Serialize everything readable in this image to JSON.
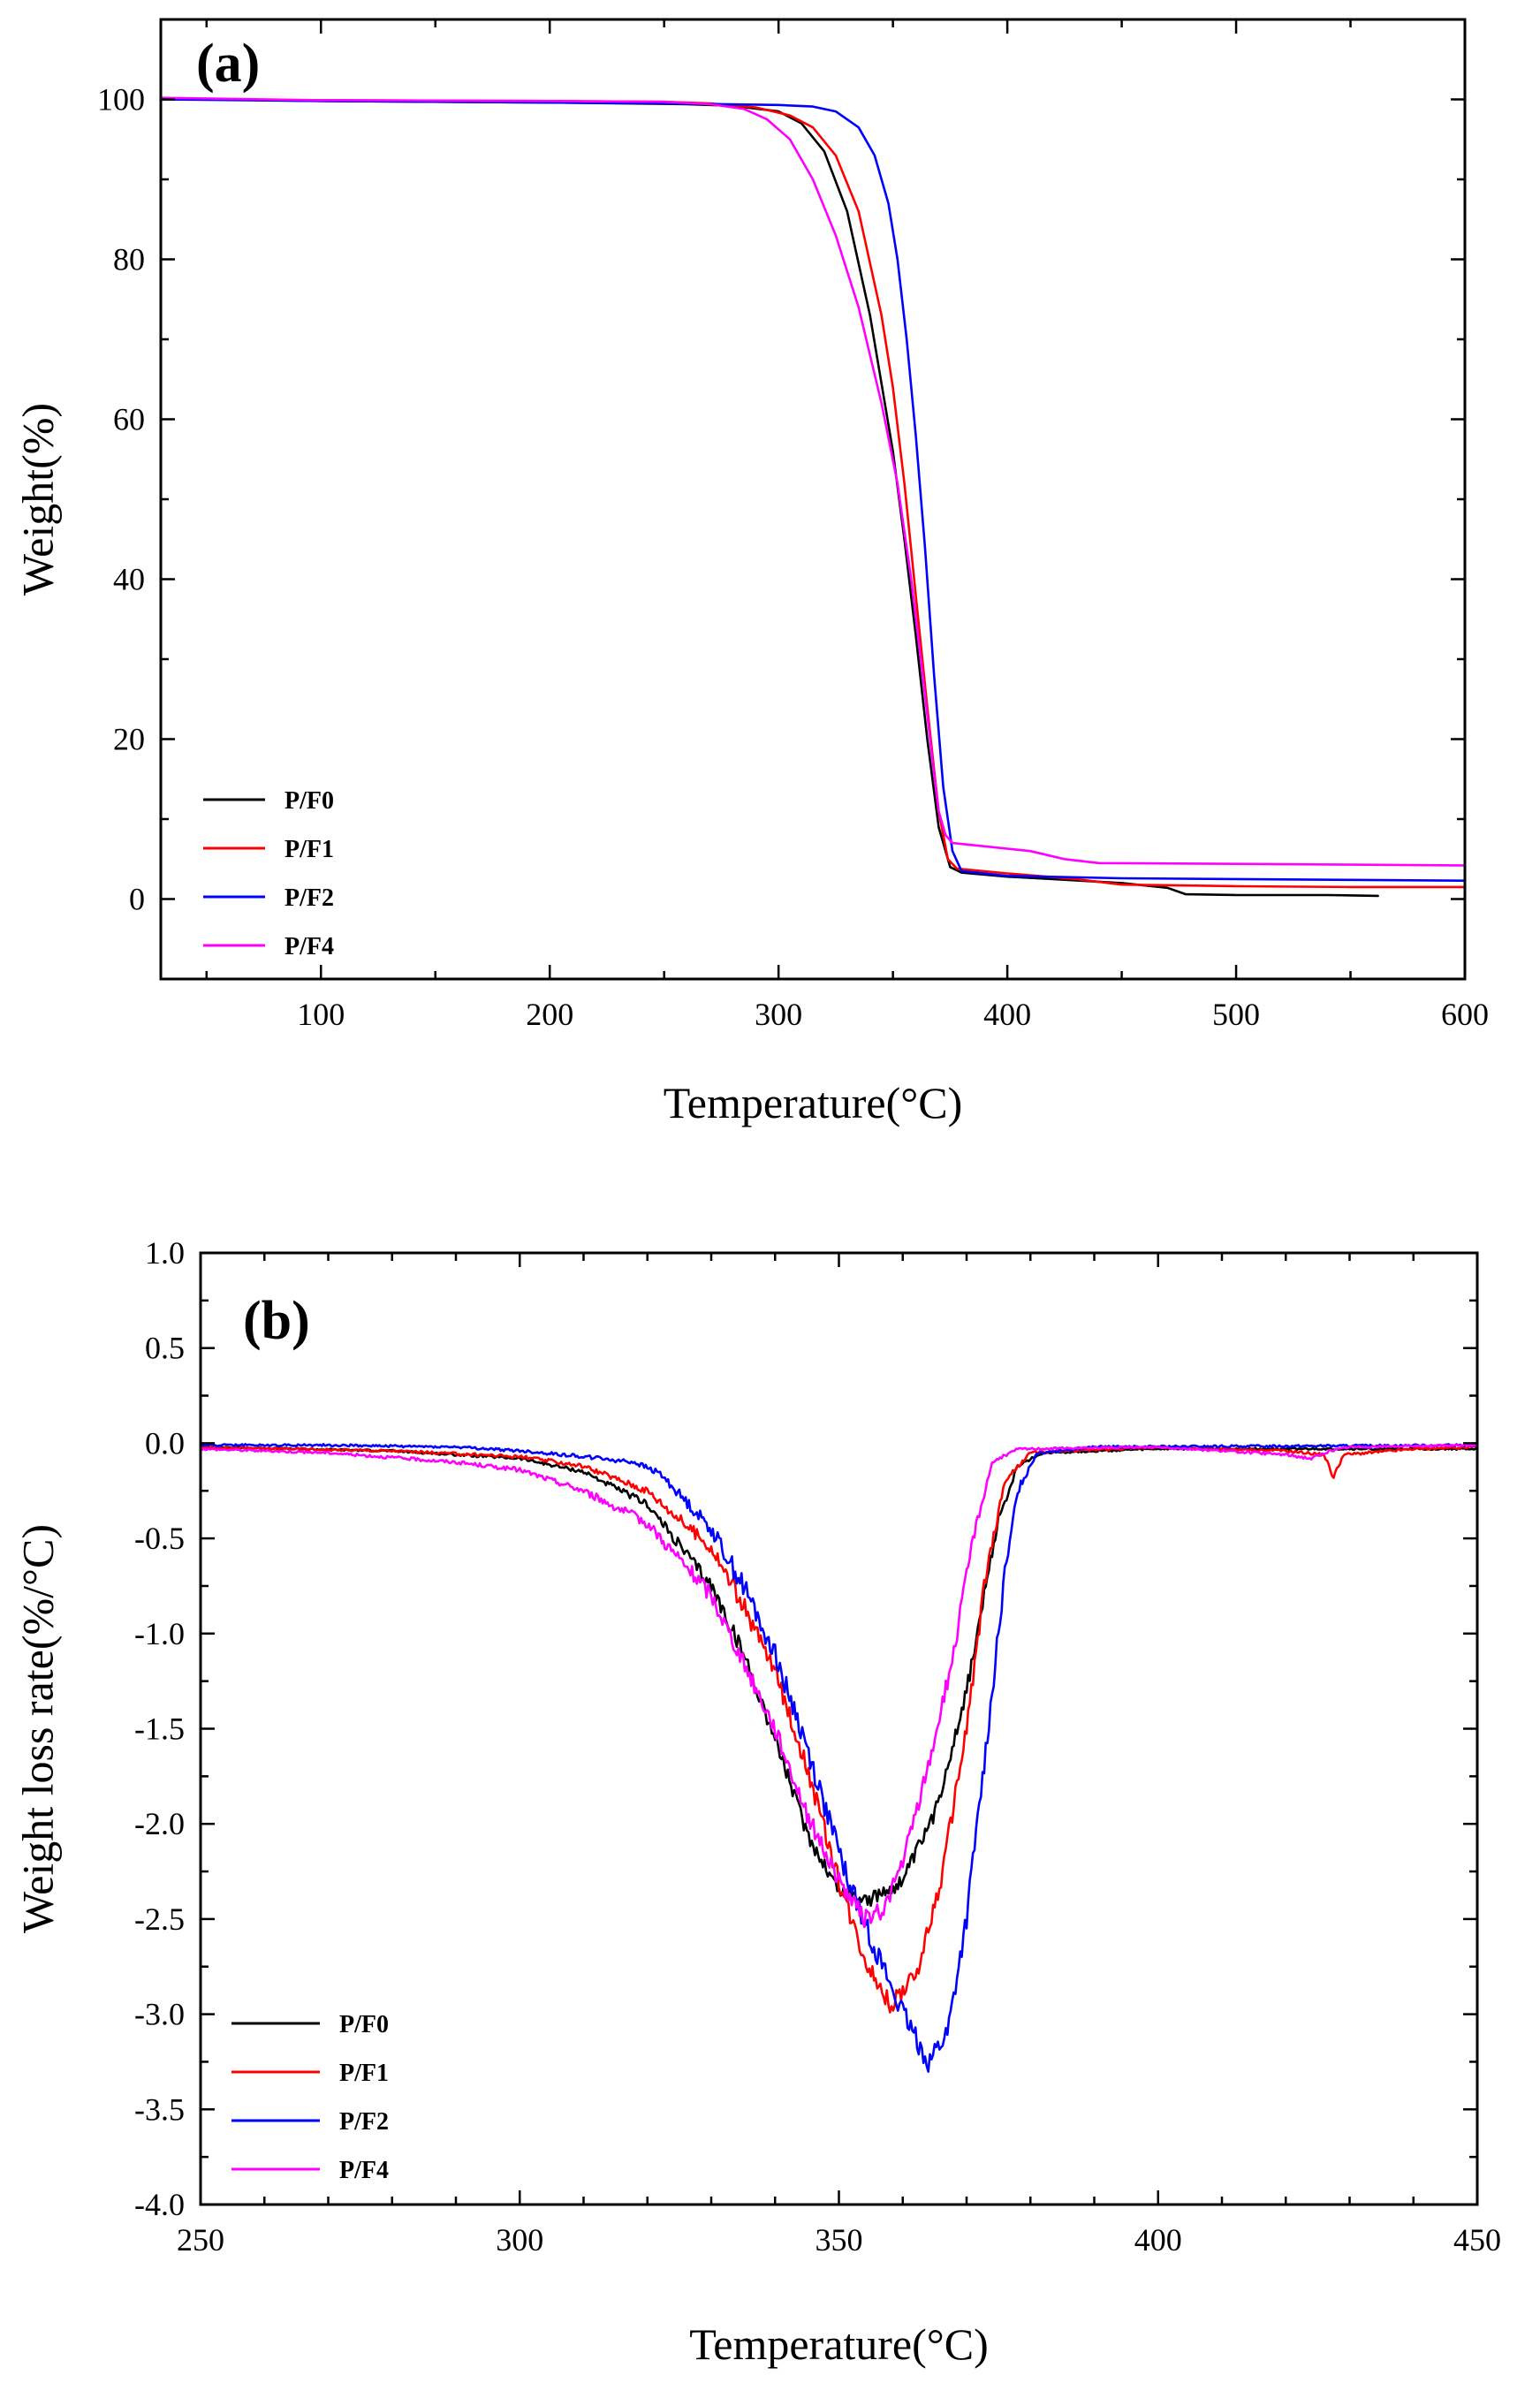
{
  "chart_data": [
    {
      "type": "line",
      "panel_label": "(a)",
      "title": "",
      "xlabel": "Temperature(°C)",
      "ylabel": "Weight(%)",
      "xlim": [
        30,
        600
      ],
      "ylim": [
        -10,
        110
      ],
      "xticks": [
        100,
        200,
        300,
        400,
        500,
        600
      ],
      "yticks": [
        0,
        20,
        40,
        60,
        80,
        100
      ],
      "x_minor_step": 50,
      "y_minor_step": 10,
      "grid": false,
      "legend_position": "bottom-left",
      "series": [
        {
          "name": "P/F0",
          "color": "#000000",
          "points": [
            [
              30,
              100.1
            ],
            [
              100,
              99.8
            ],
            [
              200,
              99.6
            ],
            [
              260,
              99.4
            ],
            [
              280,
              99.2
            ],
            [
              300,
              98.5
            ],
            [
              310,
              97
            ],
            [
              320,
              93.5
            ],
            [
              330,
              86
            ],
            [
              340,
              73
            ],
            [
              350,
              56
            ],
            [
              355,
              45
            ],
            [
              360,
              33
            ],
            [
              365,
              20
            ],
            [
              370,
              9
            ],
            [
              375,
              4
            ],
            [
              380,
              3.3
            ],
            [
              400,
              2.8
            ],
            [
              420,
              2.5
            ],
            [
              450,
              2.0
            ],
            [
              470,
              1.4
            ],
            [
              478,
              0.6
            ],
            [
              500,
              0.5
            ],
            [
              540,
              0.5
            ],
            [
              562,
              0.4
            ]
          ]
        },
        {
          "name": "P/F1",
          "color": "#ff0000",
          "points": [
            [
              30,
              100.0
            ],
            [
              100,
              99.9
            ],
            [
              200,
              99.8
            ],
            [
              250,
              99.7
            ],
            [
              270,
              99.5
            ],
            [
              290,
              99.0
            ],
            [
              305,
              98.0
            ],
            [
              315,
              96.5
            ],
            [
              325,
              93
            ],
            [
              335,
              86
            ],
            [
              345,
              73
            ],
            [
              350,
              64
            ],
            [
              355,
              52
            ],
            [
              360,
              38
            ],
            [
              365,
              24
            ],
            [
              370,
              11
            ],
            [
              374,
              5
            ],
            [
              378,
              3.8
            ],
            [
              400,
              3.2
            ],
            [
              430,
              2.5
            ],
            [
              450,
              1.8
            ],
            [
              500,
              1.6
            ],
            [
              550,
              1.5
            ],
            [
              600,
              1.5
            ]
          ]
        },
        {
          "name": "P/F2",
          "color": "#0000ff",
          "points": [
            [
              30,
              100.0
            ],
            [
              100,
              99.8
            ],
            [
              200,
              99.6
            ],
            [
              250,
              99.5
            ],
            [
              300,
              99.3
            ],
            [
              315,
              99.1
            ],
            [
              325,
              98.5
            ],
            [
              335,
              96.5
            ],
            [
              342,
              93
            ],
            [
              348,
              87
            ],
            [
              352,
              80
            ],
            [
              356,
              70
            ],
            [
              360,
              58
            ],
            [
              364,
              44
            ],
            [
              368,
              28
            ],
            [
              372,
              14
            ],
            [
              376,
              6
            ],
            [
              380,
              3.5
            ],
            [
              400,
              2.9
            ],
            [
              450,
              2.6
            ],
            [
              500,
              2.5
            ],
            [
              550,
              2.4
            ],
            [
              600,
              2.3
            ]
          ]
        },
        {
          "name": "P/F4",
          "color": "#ff00ff",
          "points": [
            [
              30,
              100.2
            ],
            [
              100,
              99.9
            ],
            [
              200,
              99.8
            ],
            [
              250,
              99.7
            ],
            [
              270,
              99.4
            ],
            [
              285,
              98.8
            ],
            [
              295,
              97.5
            ],
            [
              305,
              95
            ],
            [
              315,
              90
            ],
            [
              325,
              83
            ],
            [
              335,
              74
            ],
            [
              345,
              62
            ],
            [
              352,
              52
            ],
            [
              358,
              40
            ],
            [
              363,
              28
            ],
            [
              367,
              18
            ],
            [
              370,
              11
            ],
            [
              373,
              8
            ],
            [
              376,
              7.0
            ],
            [
              390,
              6.6
            ],
            [
              410,
              6.0
            ],
            [
              425,
              5.0
            ],
            [
              440,
              4.5
            ],
            [
              500,
              4.4
            ],
            [
              550,
              4.3
            ],
            [
              600,
              4.2
            ]
          ]
        }
      ]
    },
    {
      "type": "line",
      "panel_label": "(b)",
      "title": "",
      "xlabel": "Temperature(°C)",
      "ylabel": "Weight loss rate(%/°C)",
      "xlim": [
        250,
        450
      ],
      "ylim": [
        -4.0,
        1.0
      ],
      "xticks": [
        250,
        300,
        350,
        400,
        450
      ],
      "yticks": [
        -4.0,
        -3.5,
        -3.0,
        -2.5,
        -2.0,
        -1.5,
        -1.0,
        -0.5,
        0.0,
        0.5,
        1.0
      ],
      "x_minor_step": 10,
      "y_minor_step": 0.25,
      "grid": false,
      "legend_position": "bottom-left",
      "series": [
        {
          "name": "P/F0",
          "color": "#000000",
          "noise": 0.04,
          "points": [
            [
              250,
              -0.02
            ],
            [
              280,
              -0.04
            ],
            [
              300,
              -0.08
            ],
            [
              310,
              -0.15
            ],
            [
              320,
              -0.32
            ],
            [
              330,
              -0.75
            ],
            [
              335,
              -1.1
            ],
            [
              340,
              -1.55
            ],
            [
              345,
              -2.05
            ],
            [
              350,
              -2.35
            ],
            [
              355,
              -2.4
            ],
            [
              360,
              -2.3
            ],
            [
              365,
              -1.95
            ],
            [
              370,
              -1.3
            ],
            [
              375,
              -0.4
            ],
            [
              378,
              -0.12
            ],
            [
              382,
              -0.05
            ],
            [
              400,
              -0.03
            ],
            [
              430,
              -0.03
            ],
            [
              450,
              -0.03
            ]
          ]
        },
        {
          "name": "P/F1",
          "color": "#ff0000",
          "noise": 0.05,
          "points": [
            [
              250,
              -0.02
            ],
            [
              280,
              -0.04
            ],
            [
              300,
              -0.07
            ],
            [
              310,
              -0.12
            ],
            [
              320,
              -0.25
            ],
            [
              330,
              -0.55
            ],
            [
              335,
              -0.85
            ],
            [
              340,
              -1.2
            ],
            [
              345,
              -1.7
            ],
            [
              350,
              -2.3
            ],
            [
              354,
              -2.7
            ],
            [
              358,
              -2.95
            ],
            [
              362,
              -2.8
            ],
            [
              366,
              -2.3
            ],
            [
              370,
              -1.5
            ],
            [
              373,
              -0.7
            ],
            [
              376,
              -0.2
            ],
            [
              380,
              -0.05
            ],
            [
              400,
              -0.02
            ],
            [
              420,
              -0.04
            ],
            [
              426,
              -0.06
            ],
            [
              427.5,
              -0.18
            ],
            [
              429,
              -0.06
            ],
            [
              433,
              -0.05
            ],
            [
              440,
              -0.03
            ],
            [
              450,
              -0.02
            ]
          ]
        },
        {
          "name": "P/F2",
          "color": "#0000ff",
          "noise": 0.06,
          "points": [
            [
              250,
              -0.01
            ],
            [
              270,
              -0.01
            ],
            [
              290,
              -0.02
            ],
            [
              300,
              -0.04
            ],
            [
              310,
              -0.07
            ],
            [
              318,
              -0.1
            ],
            [
              322,
              -0.16
            ],
            [
              330,
              -0.45
            ],
            [
              335,
              -0.75
            ],
            [
              340,
              -1.1
            ],
            [
              345,
              -1.6
            ],
            [
              350,
              -2.15
            ],
            [
              355,
              -2.6
            ],
            [
              360,
              -3.0
            ],
            [
              364,
              -3.25
            ],
            [
              367,
              -3.1
            ],
            [
              370,
              -2.5
            ],
            [
              373,
              -1.6
            ],
            [
              376,
              -0.7
            ],
            [
              378,
              -0.25
            ],
            [
              381,
              -0.05
            ],
            [
              390,
              -0.02
            ],
            [
              450,
              -0.01
            ]
          ]
        },
        {
          "name": "P/F4",
          "color": "#ff00ff",
          "noise": 0.045,
          "points": [
            [
              250,
              -0.03
            ],
            [
              270,
              -0.05
            ],
            [
              290,
              -0.1
            ],
            [
              300,
              -0.14
            ],
            [
              310,
              -0.25
            ],
            [
              320,
              -0.42
            ],
            [
              330,
              -0.8
            ],
            [
              340,
              -1.5
            ],
            [
              345,
              -1.95
            ],
            [
              350,
              -2.3
            ],
            [
              354,
              -2.5
            ],
            [
              357,
              -2.45
            ],
            [
              360,
              -2.2
            ],
            [
              364,
              -1.7
            ],
            [
              368,
              -1.1
            ],
            [
              371,
              -0.5
            ],
            [
              374,
              -0.1
            ],
            [
              378,
              -0.03
            ],
            [
              400,
              -0.02
            ],
            [
              420,
              -0.06
            ],
            [
              424,
              -0.08
            ],
            [
              427,
              -0.04
            ],
            [
              430,
              -0.02
            ],
            [
              450,
              -0.01
            ]
          ]
        }
      ]
    }
  ]
}
